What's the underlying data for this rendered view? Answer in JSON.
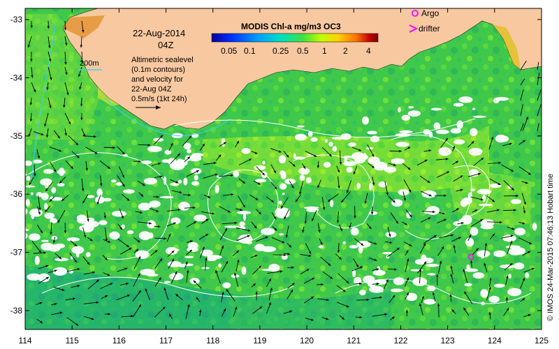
{
  "date_title": "22-Aug-2014",
  "time_title": "04Z",
  "scale_bar_label": "200m",
  "description_lines": [
    "Altimetric sealevel",
    "(0.1m contours)",
    "and velocity for",
    "22-Aug 04Z",
    "0.5m/s (1kt 24h)"
  ],
  "colorbar": {
    "title": "MODIS Chl-a mg/m3 OC3",
    "tick_labels": [
      "0.05",
      "0.1",
      "0.25",
      "0.5",
      "1",
      "2",
      "4"
    ],
    "colors": [
      "#0000a0",
      "#0030ff",
      "#00a0ff",
      "#00e0c0",
      "#40e040",
      "#c0ff00",
      "#ffd000",
      "#ff7000",
      "#c00000",
      "#800000"
    ]
  },
  "legend": {
    "argo_label": "Argo",
    "drifter_label": "drifter",
    "marker_color": "#ff00ff"
  },
  "credit": "© IMOS 24-Mar-2015 07:46:13 Hobart time",
  "axes": {
    "lon_labels": [
      "114",
      "115",
      "116",
      "117",
      "118",
      "119",
      "120",
      "121",
      "122",
      "123",
      "124",
      "125"
    ],
    "lat_labels": [
      "-33",
      "-34",
      "-35",
      "-36",
      "-37",
      "-38"
    ]
  },
  "colors": {
    "land": "#f8c8a0",
    "ocean_low": "#30c850",
    "ocean_mid": "#60d840",
    "cloud": "#ffffff",
    "arrow": "#000000",
    "contour": "#ffffff",
    "isobath": "#40d0ff"
  }
}
